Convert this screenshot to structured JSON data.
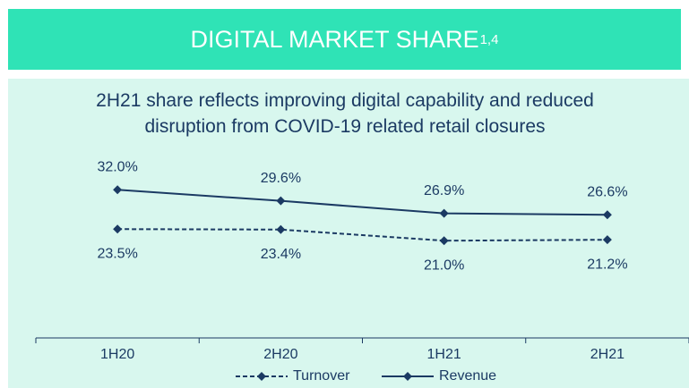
{
  "chart_data": {
    "type": "line",
    "title": "DIGITAL MARKET SHARE",
    "title_superscript": "1,4",
    "subtitle": "2H21 share reflects improving digital capability and reduced disruption from COVID-19 related retail closures",
    "categories": [
      "1H20",
      "2H20",
      "1H21",
      "2H21"
    ],
    "ylim": [
      0,
      40
    ],
    "series": [
      {
        "name": "Turnover",
        "color": "#1b3a63",
        "style": "dashed",
        "label_position": "below",
        "values": [
          23.5,
          23.4,
          21.0,
          21.2
        ],
        "value_labels": [
          "23.5%",
          "23.4%",
          "21.0%",
          "21.2%"
        ]
      },
      {
        "name": "Revenue",
        "color": "#1b3a63",
        "style": "solid",
        "label_position": "above",
        "values": [
          32.0,
          29.6,
          26.9,
          26.6
        ],
        "value_labels": [
          "32.0%",
          "29.6%",
          "26.9%",
          "26.6%"
        ]
      }
    ]
  }
}
